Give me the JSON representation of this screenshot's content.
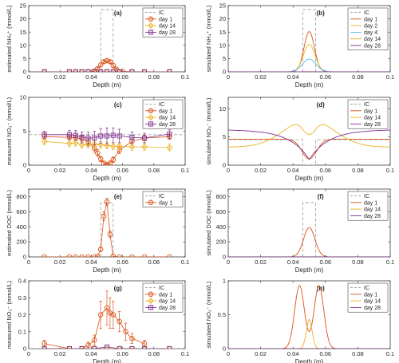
{
  "colors": {
    "ic": "#a6a6a6",
    "day1": "#d95319",
    "day2": "#edb120",
    "day4": "#4dbeee",
    "day14": "#edb120",
    "day28": "#7e2f8e",
    "axis": "#262626"
  },
  "chart_data": [
    {
      "panel": "(a)",
      "type": "scatter",
      "error_bars": true,
      "xlabel": "Depth (m)",
      "ylabel": "estimated NH₄⁺ (mmol/L)",
      "xlim": [
        0,
        0.1
      ],
      "ylim": [
        0,
        25
      ],
      "xticks": [
        0,
        0.02,
        0.04,
        0.06,
        0.08,
        0.1
      ],
      "yticks": [
        0,
        5,
        10,
        15,
        20,
        25
      ],
      "xtick_labels": [
        "0",
        "0.02",
        "0.04",
        "0.06",
        "0.08",
        "0.1"
      ],
      "ytick_labels": [
        "0",
        "5",
        "10",
        "15",
        "20",
        "25"
      ],
      "legend": [
        "IC",
        "day 1",
        "day 14",
        "day 28"
      ],
      "legend_position": "top-right",
      "ic": {
        "x": [
          0.046,
          0.046,
          0.054,
          0.054
        ],
        "y": [
          0,
          23.5,
          23.5,
          0
        ]
      },
      "series": [
        {
          "name": "day 1",
          "style": "circle",
          "x": [
            0.01,
            0.026,
            0.03,
            0.034,
            0.038,
            0.042,
            0.044,
            0.046,
            0.048,
            0.05,
            0.052,
            0.054,
            0.056,
            0.06,
            0.066,
            0.074,
            0.09
          ],
          "y": [
            0,
            0,
            0,
            0,
            0,
            0.3,
            1.2,
            2.6,
            3.8,
            4.2,
            3.8,
            2.4,
            1.0,
            0.2,
            0,
            0,
            0
          ],
          "err": [
            0,
            0,
            0,
            0,
            0,
            0,
            0.4,
            0.8,
            0.6,
            0.7,
            0.6,
            0.8,
            0.4,
            0,
            0,
            0,
            0
          ]
        },
        {
          "name": "day 14",
          "style": "diamond",
          "x": [
            0.01,
            0.026,
            0.03,
            0.034,
            0.038,
            0.042,
            0.046,
            0.05,
            0.054,
            0.058,
            0.066,
            0.074,
            0.09
          ],
          "y": [
            0,
            0,
            0,
            0,
            0,
            0,
            0,
            0,
            0,
            0,
            0,
            0,
            0
          ],
          "err": [
            0,
            0,
            0,
            0,
            0,
            0,
            0,
            0,
            0,
            0,
            0,
            0,
            0
          ]
        },
        {
          "name": "day 28",
          "style": "square",
          "x": [
            0.01,
            0.026,
            0.03,
            0.034,
            0.038,
            0.042,
            0.046,
            0.05,
            0.054,
            0.058,
            0.066,
            0.074,
            0.09
          ],
          "y": [
            0,
            0,
            0,
            0,
            0,
            0,
            0,
            0,
            0,
            0,
            0,
            0,
            0
          ],
          "err": [
            0,
            0,
            0,
            0,
            0,
            0,
            0,
            0,
            0,
            0,
            0,
            0,
            0
          ]
        }
      ]
    },
    {
      "panel": "(b)",
      "type": "line",
      "xlabel": "Depth (m)",
      "ylabel": "simulated NH₄⁺ (mmol/L)",
      "xlim": [
        0,
        0.1
      ],
      "ylim": [
        0,
        25
      ],
      "xticks": [
        0,
        0.02,
        0.04,
        0.06,
        0.08,
        0.1
      ],
      "yticks": [
        0,
        5,
        10,
        15,
        20,
        25
      ],
      "xtick_labels": [
        "0",
        "0.02",
        "0.04",
        "0.06",
        "0.08",
        "0.1"
      ],
      "ytick_labels": [
        "0",
        "5",
        "10",
        "15",
        "20",
        "25"
      ],
      "legend": [
        "IC",
        "day 1",
        "day 2",
        "day 4",
        "day 14",
        "day 28"
      ],
      "legend_position": "top-right",
      "ic": {
        "x": [
          0.046,
          0.046,
          0.054,
          0.054
        ],
        "y": [
          0,
          23.5,
          23.5,
          0
        ]
      },
      "series": [
        {
          "name": "day 1",
          "curve": "gauss",
          "center": 0.05,
          "peak": 15.2,
          "width": 0.0032
        },
        {
          "name": "day 2",
          "curve": "gauss",
          "center": 0.05,
          "peak": 10.4,
          "width": 0.0036
        },
        {
          "name": "day 4",
          "curve": "gauss",
          "center": 0.05,
          "peak": 4.8,
          "width": 0.0042
        },
        {
          "name": "day 14",
          "curve": "gauss",
          "center": 0.05,
          "peak": 0.05,
          "width": 0.006
        },
        {
          "name": "day 28",
          "curve": "gauss",
          "center": 0.05,
          "peak": 0.0,
          "width": 0.006
        }
      ]
    },
    {
      "panel": "(c)",
      "type": "scatter",
      "error_bars": true,
      "xlabel": "Depth (m)",
      "ylabel": "measured NO₃⁻ (mmol/L)",
      "xlim": [
        0,
        0.1
      ],
      "ylim": [
        0,
        10
      ],
      "xticks": [
        0,
        0.02,
        0.04,
        0.06,
        0.08,
        0.1
      ],
      "yticks": [
        0,
        5,
        10
      ],
      "xtick_labels": [
        "0",
        "0.02",
        "0.04",
        "0.06",
        "0.08",
        "0.1"
      ],
      "ytick_labels": [
        "0",
        "5",
        "10"
      ],
      "legend": [
        "IC",
        "day 1",
        "day 14",
        "day 28"
      ],
      "legend_position": "top-right",
      "ic": {
        "x": [
          0,
          0.046,
          0.046,
          0.054,
          0.054,
          0.1
        ],
        "y": [
          4.5,
          4.5,
          4.5,
          4.5,
          4.5,
          4.5
        ]
      },
      "series": [
        {
          "name": "day 1",
          "style": "circle",
          "x": [
            0.01,
            0.026,
            0.03,
            0.034,
            0.038,
            0.042,
            0.044,
            0.046,
            0.048,
            0.05,
            0.052,
            0.054,
            0.058,
            0.066,
            0.074,
            0.09
          ],
          "y": [
            4.2,
            4.1,
            4.0,
            3.9,
            3.4,
            2.5,
            1.8,
            0.9,
            0.3,
            0.1,
            0.3,
            0.8,
            2.2,
            3.5,
            4.0,
            4.2
          ],
          "err": [
            0.4,
            0.4,
            0.4,
            0.4,
            0.5,
            0.6,
            0.5,
            0.4,
            0.3,
            0.2,
            0.3,
            0.4,
            0.5,
            0.4,
            0.4,
            0.4
          ]
        },
        {
          "name": "day 14",
          "style": "diamond",
          "x": [
            0.01,
            0.026,
            0.03,
            0.034,
            0.038,
            0.042,
            0.046,
            0.05,
            0.054,
            0.058,
            0.066,
            0.074,
            0.09
          ],
          "y": [
            3.5,
            3.2,
            3.3,
            3.0,
            3.0,
            3.1,
            3.0,
            2.9,
            2.8,
            2.8,
            2.7,
            2.7,
            2.6
          ],
          "err": [
            0.5,
            0.5,
            0.5,
            0.5,
            0.5,
            0.5,
            0.5,
            0.5,
            0.5,
            0.5,
            0.5,
            0.5,
            0.5
          ]
        },
        {
          "name": "day 28",
          "style": "square",
          "x": [
            0.01,
            0.026,
            0.03,
            0.034,
            0.038,
            0.042,
            0.046,
            0.05,
            0.054,
            0.058,
            0.066,
            0.074,
            0.09
          ],
          "y": [
            4.5,
            4.5,
            4.4,
            4.1,
            4.0,
            4.0,
            4.3,
            4.3,
            4.4,
            4.3,
            4.1,
            4.0,
            4.6
          ],
          "err": [
            0.5,
            0.6,
            0.7,
            0.8,
            0.9,
            1.0,
            1.1,
            1.2,
            1.1,
            1.0,
            0.8,
            0.7,
            0.6
          ]
        }
      ]
    },
    {
      "panel": "(d)",
      "type": "line",
      "xlabel": "Depth (m)",
      "ylabel": "simulated NO₃⁻ (mmol/L)",
      "xlim": [
        0,
        0.1
      ],
      "ylim": [
        0,
        12
      ],
      "xticks": [
        0,
        0.02,
        0.04,
        0.06,
        0.08,
        0.1
      ],
      "yticks": [
        0,
        5,
        10
      ],
      "xtick_labels": [
        "0",
        "0.02",
        "0.04",
        "0.06",
        "0.08",
        "0.1"
      ],
      "ytick_labels": [
        "0",
        "5",
        "10"
      ],
      "legend": [
        "IC",
        "day 1",
        "day 14",
        "day 28"
      ],
      "legend_position": "top-right",
      "ic": {
        "x": [
          0,
          0.046,
          0.046,
          0.054,
          0.054,
          0.1
        ],
        "y": [
          4.5,
          4.5,
          0,
          0,
          4.5,
          4.5
        ]
      },
      "series": [
        {
          "name": "day 1",
          "curve": "dip",
          "base": 4.6,
          "center": 0.05,
          "depth": 3.5,
          "width": 0.0045
        },
        {
          "name": "day 14",
          "curve": "hump",
          "base": 3.2,
          "center": 0.05,
          "amp": 5.0,
          "sigma": 0.015,
          "notch": 2.8,
          "notch_width": 0.004
        },
        {
          "name": "day 28",
          "curve": "vdip",
          "edge": 6.2,
          "center": 0.05,
          "min": 1.0,
          "scale": 0.012
        }
      ]
    },
    {
      "panel": "(e)",
      "type": "scatter",
      "error_bars": true,
      "xlabel": "Depth (m)",
      "ylabel": "estimated DOC (mmol/L)",
      "xlim": [
        0,
        0.1
      ],
      "ylim": [
        0,
        900
      ],
      "xticks": [
        0,
        0.02,
        0.04,
        0.06,
        0.08,
        0.1
      ],
      "yticks": [
        0,
        200,
        400,
        600,
        800
      ],
      "xtick_labels": [
        "0",
        "0.02",
        "0.04",
        "0.06",
        "0.08",
        "0.1"
      ],
      "ytick_labels": [
        "0",
        "200",
        "400",
        "600",
        "800"
      ],
      "legend": [
        "IC",
        "day 1"
      ],
      "legend_position": "top-right",
      "ic": {
        "x": [
          0.046,
          0.046,
          0.054,
          0.054
        ],
        "y": [
          0,
          720,
          720,
          0
        ]
      },
      "series": [
        {
          "name": "day 1",
          "style": "circle",
          "x": [
            0.01,
            0.026,
            0.03,
            0.034,
            0.038,
            0.042,
            0.044,
            0.046,
            0.048,
            0.05,
            0.052,
            0.054,
            0.058,
            0.066,
            0.074,
            0.09
          ],
          "y": [
            0,
            0,
            0,
            0,
            0,
            0,
            5,
            100,
            540,
            730,
            300,
            10,
            0,
            0,
            0,
            0
          ],
          "err": [
            0,
            0,
            0,
            0,
            0,
            0,
            0,
            30,
            60,
            50,
            40,
            0,
            0,
            0,
            0,
            0
          ]
        }
      ]
    },
    {
      "panel": "(f)",
      "type": "line",
      "xlabel": "Depth (m)",
      "ylabel": "simulated DOC (mmol/L)",
      "xlim": [
        0,
        0.1
      ],
      "ylim": [
        0,
        900
      ],
      "xticks": [
        0,
        0.02,
        0.04,
        0.06,
        0.08,
        0.1
      ],
      "yticks": [
        0,
        200,
        400,
        600,
        800
      ],
      "xtick_labels": [
        "0",
        "0.02",
        "0.04",
        "0.06",
        "0.08",
        "0.1"
      ],
      "ytick_labels": [
        "0",
        "200",
        "400",
        "600",
        "800"
      ],
      "legend": [
        "IC",
        "day 1",
        "day 14",
        "day 28"
      ],
      "legend_position": "top-right",
      "ic": {
        "x": [
          0.046,
          0.046,
          0.054,
          0.054
        ],
        "y": [
          0,
          720,
          720,
          0
        ]
      },
      "series": [
        {
          "name": "day 1",
          "curve": "gauss",
          "center": 0.05,
          "peak": 390,
          "width": 0.0035
        },
        {
          "name": "day 14",
          "curve": "gauss",
          "center": 0.05,
          "peak": 0,
          "width": 0.004
        },
        {
          "name": "day 28",
          "curve": "gauss",
          "center": 0.05,
          "peak": 0,
          "width": 0.004
        }
      ]
    },
    {
      "panel": "(g)",
      "type": "scatter",
      "error_bars": true,
      "xlabel": "Depth (m)",
      "ylabel": "measured NO₂⁻ (mmol/L)",
      "xlim": [
        0,
        0.1
      ],
      "ylim": [
        0,
        0.4
      ],
      "xticks": [
        0,
        0.02,
        0.04,
        0.06,
        0.08,
        0.1
      ],
      "yticks": [
        0,
        0.1,
        0.2,
        0.3,
        0.4
      ],
      "xtick_labels": [
        "0",
        "0.02",
        "0.04",
        "0.06",
        "0.08",
        "0.1"
      ],
      "ytick_labels": [
        "0",
        "0.1",
        "0.2",
        "0.3",
        "0.4"
      ],
      "legend": [
        "IC",
        "day 1",
        "day 14",
        "day 28"
      ],
      "legend_position": "top-right",
      "ic": {
        "x": [
          0,
          0.1
        ],
        "y": [
          0,
          0
        ]
      },
      "series": [
        {
          "name": "day 1",
          "style": "circle",
          "x": [
            0.01,
            0.026,
            0.034,
            0.038,
            0.042,
            0.046,
            0.05,
            0.052,
            0.054,
            0.058,
            0.062,
            0.066,
            0.074
          ],
          "y": [
            0.03,
            0,
            0,
            0.02,
            0.05,
            0.2,
            0.24,
            0.21,
            0.2,
            0.16,
            0.1,
            0.06,
            0.03
          ],
          "err": [
            0.02,
            0,
            0,
            0.02,
            0.03,
            0.08,
            0.1,
            0.09,
            0.08,
            0.06,
            0.05,
            0.03,
            0.02
          ]
        },
        {
          "name": "day 14",
          "style": "diamond",
          "x": [
            0.01,
            0.026,
            0.034,
            0.042,
            0.05,
            0.058,
            0.066,
            0.074,
            0.09
          ],
          "y": [
            0,
            0,
            0,
            0,
            0,
            0,
            0,
            0,
            0
          ],
          "err": [
            0,
            0,
            0,
            0,
            0,
            0,
            0,
            0,
            0
          ]
        },
        {
          "name": "day 28",
          "style": "square",
          "x": [
            0.01,
            0.026,
            0.034,
            0.042,
            0.05,
            0.058,
            0.066,
            0.074,
            0.09
          ],
          "y": [
            0,
            0,
            0,
            0,
            0.01,
            0,
            0,
            0,
            0
          ],
          "err": [
            0,
            0,
            0,
            0,
            0,
            0,
            0,
            0,
            0
          ]
        }
      ]
    },
    {
      "panel": "(h)",
      "type": "line",
      "xlabel": "Depth (m)",
      "ylabel": "simulated NO₂⁻ (mmol/L)",
      "xlim": [
        0,
        0.1
      ],
      "ylim": [
        0,
        1
      ],
      "xticks": [
        0,
        0.02,
        0.04,
        0.06,
        0.08,
        0.1
      ],
      "yticks": [
        0,
        0.5,
        1
      ],
      "xtick_labels": [
        "0",
        "0.02",
        "0.04",
        "0.06",
        "0.08",
        "0.1"
      ],
      "ytick_labels": [
        "0",
        "0.5",
        "1"
      ],
      "legend": [
        "IC",
        "day 1",
        "day 14",
        "day 28"
      ],
      "legend_position": "top-right",
      "ic": {
        "x": [
          0,
          0.1
        ],
        "y": [
          0,
          0
        ]
      },
      "series": [
        {
          "name": "day 1",
          "curve": "double",
          "centers": [
            0.044,
            0.056
          ],
          "peak": 0.93,
          "width": 0.003
        },
        {
          "name": "day 14",
          "curve": "gauss",
          "center": 0.05,
          "peak": 0.43,
          "width": 0.0018
        },
        {
          "name": "day 28",
          "curve": "gauss",
          "center": 0.05,
          "peak": 0,
          "width": 0.003
        }
      ]
    }
  ]
}
